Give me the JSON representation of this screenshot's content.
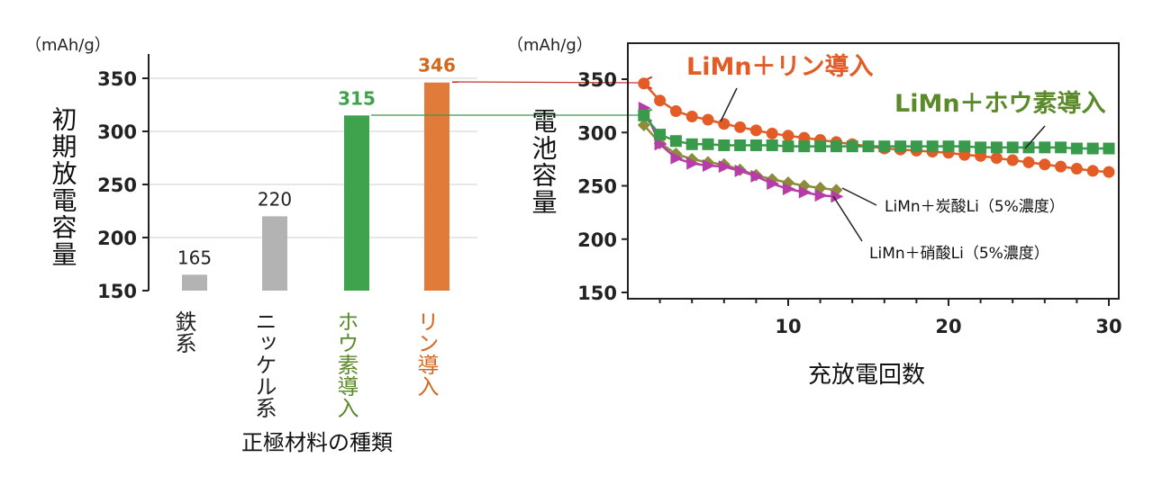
{
  "chart_data": [
    {
      "type": "bar",
      "unit": "（mAh/g）",
      "ylabel": "初期放電容量",
      "xlabel": "正極材料の種類",
      "ylim": [
        150,
        370
      ],
      "yticks": [
        150,
        200,
        250,
        300,
        350
      ],
      "grid": true,
      "categories": [
        "鉄系",
        "ニッケル系",
        "ホウ素導入",
        "リン導入"
      ],
      "values": [
        165,
        220,
        315,
        346
      ],
      "value_labels": [
        "165",
        "220",
        "315",
        "346"
      ],
      "colors": [
        "#b3b3b3",
        "#b3b3b3",
        "#3fa34d",
        "#e07b39"
      ],
      "label_colors": [
        "#222222",
        "#222222",
        "#3fa34d",
        "#d2691e"
      ],
      "category_colors": [
        "#222222",
        "#222222",
        "#5a8a2a",
        "#d2691e"
      ]
    },
    {
      "type": "line",
      "unit": "（mAh/g）",
      "ylabel": "電池容量",
      "xlabel": "充放電回数",
      "xlim": [
        0,
        30.5
      ],
      "ylim": [
        145,
        385
      ],
      "xticks": [
        10,
        20,
        30
      ],
      "yticks": [
        150,
        200,
        250,
        300,
        350
      ],
      "grid": false,
      "series": [
        {
          "name": "LiMn＋リン導入",
          "color": "#e35b25",
          "marker": "circle",
          "x": [
            1,
            2,
            3,
            4,
            5,
            6,
            7,
            8,
            9,
            10,
            11,
            12,
            13,
            14,
            15,
            16,
            17,
            18,
            19,
            20,
            21,
            22,
            23,
            24,
            25,
            26,
            27,
            28,
            29,
            30
          ],
          "y": [
            346,
            330,
            320,
            315,
            312,
            308,
            305,
            302,
            299,
            297,
            295,
            293,
            291,
            289,
            287,
            285,
            284,
            283,
            282,
            281,
            279,
            278,
            276,
            274,
            272,
            270,
            268,
            266,
            264,
            263
          ]
        },
        {
          "name": "LiMn＋ホウ素導入",
          "color": "#3a9a4c",
          "marker": "square",
          "x": [
            1,
            2,
            3,
            4,
            5,
            6,
            7,
            8,
            9,
            10,
            11,
            12,
            13,
            14,
            15,
            16,
            17,
            18,
            19,
            20,
            21,
            22,
            23,
            24,
            25,
            26,
            27,
            28,
            29,
            30
          ],
          "y": [
            316,
            298,
            292,
            289,
            289,
            288,
            288,
            288,
            288,
            287,
            287,
            287,
            287,
            287,
            287,
            287,
            287,
            287,
            287,
            287,
            287,
            286,
            286,
            286,
            286,
            286,
            286,
            285,
            285,
            285
          ]
        },
        {
          "name": "LiMn＋炭酸Li（5%濃度）",
          "color": "#8c8c3a",
          "marker": "diamond",
          "x": [
            1,
            2,
            3,
            4,
            5,
            6,
            7,
            8,
            9,
            10,
            11,
            12,
            13
          ],
          "y": [
            307,
            290,
            280,
            275,
            272,
            270,
            265,
            260,
            256,
            253,
            250,
            248,
            246
          ]
        },
        {
          "name": "LiMn＋硝酸Li（5%濃度）",
          "color": "#b63ca8",
          "marker": "triangle-right",
          "x": [
            1,
            2,
            3,
            4,
            5,
            6,
            7,
            8,
            9,
            10,
            11,
            12,
            13
          ],
          "y": [
            323,
            289,
            276,
            271,
            269,
            268,
            264,
            259,
            252,
            247,
            244,
            241,
            240
          ]
        }
      ]
    }
  ]
}
